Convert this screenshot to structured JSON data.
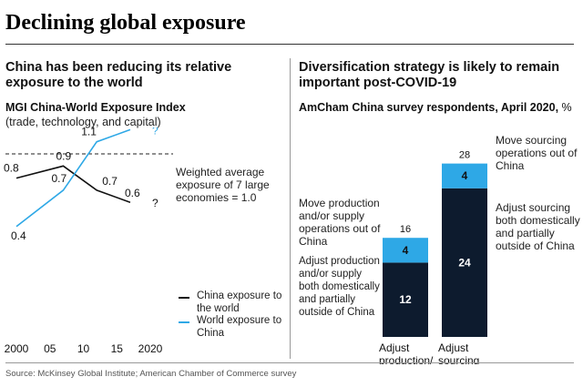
{
  "title": "Declining global exposure",
  "source": "Source: McKinsey Global Institute; American Chamber of Commerce survey",
  "left_panel": {
    "heading": "China has been reducing its relative exposure to the world",
    "chart_title": "MGI China-World Exposure Index",
    "chart_subtitle": "(trade, technology, and capital)",
    "reference_note": "Weighted average exposure of 7 large economies = 1.0",
    "legend": [
      {
        "label": "China exposure to the world",
        "color": "#111111"
      },
      {
        "label": "World exposure to China",
        "color": "#2EA8E6"
      }
    ]
  },
  "right_panel": {
    "heading": "Diversification strategy is likely to remain important post-COVID-19",
    "chart_title": "AmCham China survey respondents, April 2020,",
    "chart_unit": "%",
    "annotations": {
      "bar1_top": "Move production and/or supply operations out of China",
      "bar1_bottom": "Adjust production and/or supply both domestically and partially outside of China",
      "bar2_top": "Move sourcing operations out of China",
      "bar2_bottom": "Adjust sourcing both domestically and partially outside of China"
    }
  },
  "chart_data": [
    {
      "type": "line",
      "title": "MGI China-World Exposure Index",
      "subtitle": "(trade, technology, and capital)",
      "x_ticks": [
        "2000",
        "05",
        "10",
        "15",
        "2020"
      ],
      "xlim": [
        2000,
        2020
      ],
      "reference_line": {
        "y": 1.0,
        "label": "Weighted average exposure of 7 large economies = 1.0"
      },
      "series": [
        {
          "name": "China exposure to the world",
          "color": "#111111",
          "x": [
            2000,
            2007,
            2012,
            2017
          ],
          "y": [
            0.8,
            0.9,
            0.7,
            0.6
          ],
          "labels": [
            "0.8",
            "0.9",
            "0.7",
            "0.6"
          ],
          "end_label": "?"
        },
        {
          "name": "World exposure to China",
          "color": "#2EA8E6",
          "x": [
            2000,
            2007,
            2012,
            2017
          ],
          "y": [
            0.4,
            0.7,
            1.1,
            1.2
          ],
          "labels": [
            "0.4",
            "0.7",
            "1.1",
            "1.2"
          ],
          "end_label": "?"
        }
      ]
    },
    {
      "type": "bar",
      "stacked": true,
      "title": "AmCham China survey respondents, April 2020, %",
      "categories": [
        "Adjust production/ supply chain",
        "Adjust sourcing"
      ],
      "totals": [
        16,
        28
      ],
      "series": [
        {
          "name": "Adjust both domestically and partially outside of China",
          "color": "#0D1B2E",
          "values": [
            12,
            24
          ]
        },
        {
          "name": "Move operations out of China",
          "color": "#2EA8E6",
          "values": [
            4,
            4
          ]
        }
      ]
    }
  ]
}
